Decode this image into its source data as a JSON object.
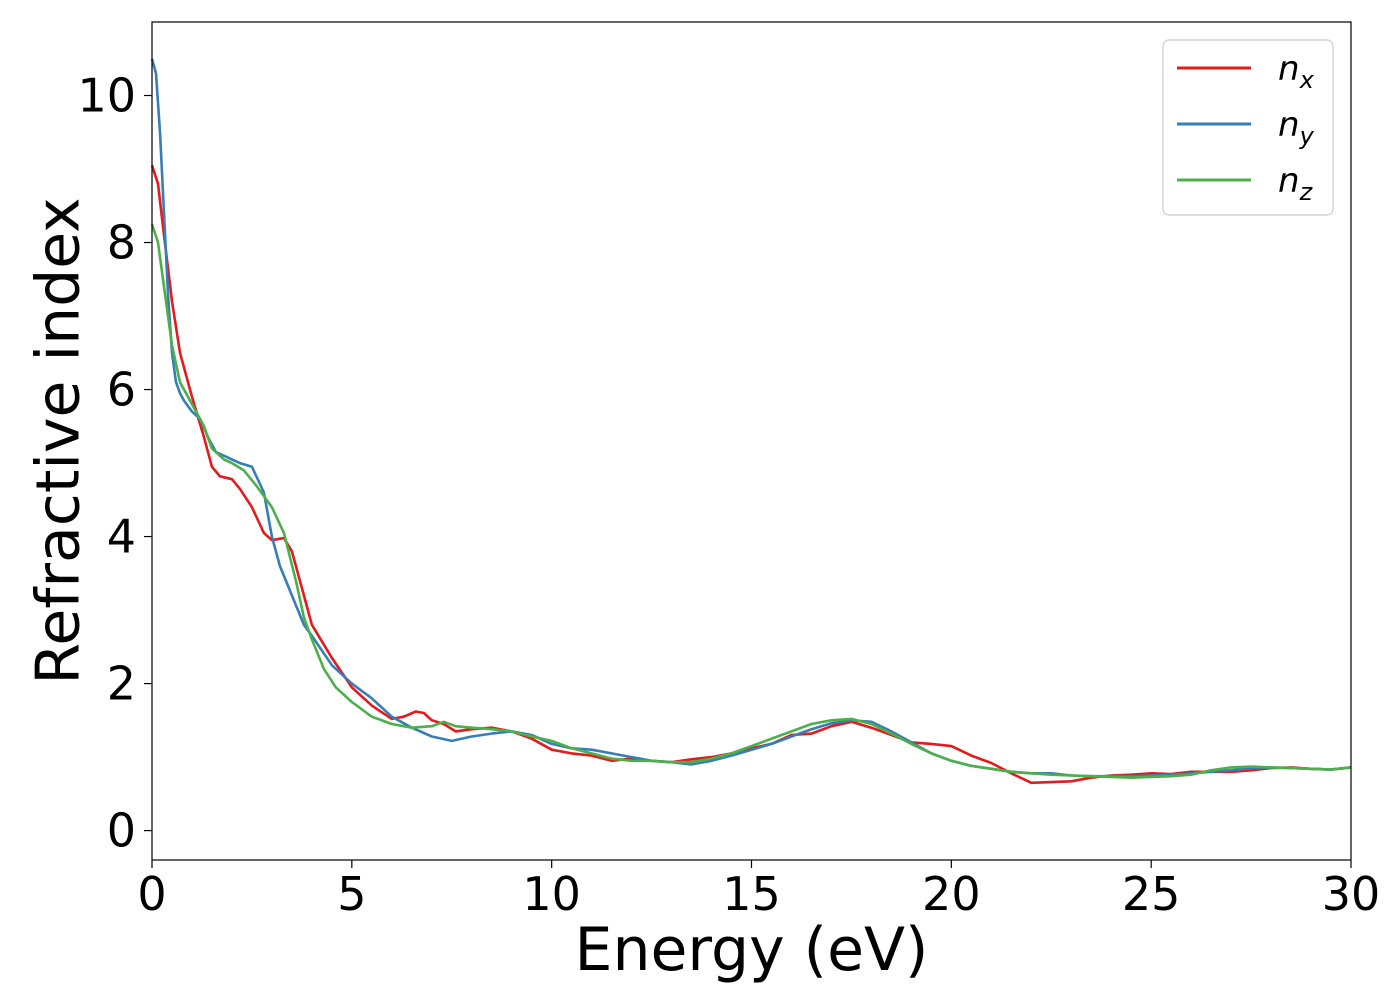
{
  "chart_data": {
    "type": "line",
    "xlabel": "Energy (eV)",
    "ylabel": "Refractive index",
    "xlim": [
      0,
      30
    ],
    "ylim": [
      -0.4,
      11
    ],
    "xticks": [
      0,
      5,
      10,
      15,
      20,
      25,
      30
    ],
    "yticks": [
      0,
      2,
      4,
      6,
      8,
      10
    ],
    "xtick_labels": [
      "0",
      "5",
      "10",
      "15",
      "20",
      "25",
      "30"
    ],
    "ytick_labels": [
      "0",
      "2",
      "4",
      "6",
      "8",
      "10"
    ],
    "grid": false,
    "legend_position": "top-right",
    "series": [
      {
        "name": "n_x",
        "legend_base": "n",
        "legend_sub": "x",
        "color": "#e41a1c",
        "x": [
          0,
          0.15,
          0.3,
          0.5,
          0.7,
          1.0,
          1.3,
          1.5,
          1.7,
          2.0,
          2.2,
          2.5,
          2.8,
          3.0,
          3.3,
          3.5,
          3.8,
          4.0,
          4.5,
          5.0,
          5.5,
          6.0,
          6.3,
          6.6,
          6.8,
          7.0,
          7.3,
          7.6,
          8.0,
          8.5,
          9.0,
          9.5,
          10.0,
          10.5,
          11.0,
          11.5,
          12.0,
          12.5,
          13.0,
          13.5,
          14.0,
          14.5,
          15.0,
          15.5,
          16.0,
          16.5,
          17.0,
          17.5,
          18.0,
          18.5,
          19.0,
          19.5,
          20.0,
          20.5,
          21.0,
          21.5,
          22.0,
          22.5,
          23.0,
          23.5,
          24.0,
          24.5,
          25.0,
          25.5,
          26.0,
          26.5,
          27.0,
          27.5,
          28.0,
          28.5,
          29.0,
          29.5,
          30.0
        ],
        "y": [
          9.05,
          8.8,
          8.1,
          7.2,
          6.5,
          5.9,
          5.35,
          4.95,
          4.82,
          4.78,
          4.65,
          4.4,
          4.05,
          3.95,
          3.98,
          3.8,
          3.2,
          2.8,
          2.35,
          1.95,
          1.7,
          1.52,
          1.55,
          1.62,
          1.6,
          1.5,
          1.45,
          1.35,
          1.38,
          1.4,
          1.35,
          1.25,
          1.1,
          1.05,
          1.02,
          0.95,
          0.98,
          0.95,
          0.93,
          0.97,
          1.0,
          1.05,
          1.12,
          1.18,
          1.3,
          1.32,
          1.42,
          1.48,
          1.4,
          1.3,
          1.2,
          1.18,
          1.15,
          1.02,
          0.92,
          0.78,
          0.65,
          0.66,
          0.67,
          0.72,
          0.75,
          0.76,
          0.78,
          0.77,
          0.8,
          0.8,
          0.8,
          0.82,
          0.85,
          0.86,
          0.84,
          0.83,
          0.86
        ]
      },
      {
        "name": "n_y",
        "legend_base": "n",
        "legend_sub": "y",
        "color": "#377eb8",
        "x": [
          0,
          0.1,
          0.2,
          0.3,
          0.4,
          0.5,
          0.6,
          0.7,
          0.8,
          1.0,
          1.2,
          1.4,
          1.6,
          1.8,
          2.0,
          2.2,
          2.5,
          2.8,
          3.0,
          3.2,
          3.5,
          3.8,
          4.0,
          4.5,
          5.0,
          5.5,
          6.0,
          6.5,
          7.0,
          7.5,
          8.0,
          8.5,
          9.0,
          9.5,
          10.0,
          10.5,
          11.0,
          11.5,
          12.0,
          12.5,
          13.0,
          13.5,
          14.0,
          14.5,
          15.0,
          15.5,
          16.0,
          16.5,
          17.0,
          17.5,
          18.0,
          18.5,
          19.0,
          19.5,
          20.0,
          20.5,
          21.0,
          21.5,
          22.0,
          22.5,
          23.0,
          23.5,
          24.0,
          24.5,
          25.0,
          25.5,
          26.0,
          26.5,
          27.0,
          27.5,
          28.0,
          28.5,
          29.0,
          29.5,
          30.0
        ],
        "y": [
          10.5,
          10.3,
          9.5,
          8.4,
          7.3,
          6.5,
          6.1,
          5.95,
          5.85,
          5.7,
          5.6,
          5.35,
          5.15,
          5.1,
          5.05,
          5.0,
          4.95,
          4.6,
          4.0,
          3.6,
          3.2,
          2.8,
          2.65,
          2.25,
          2.0,
          1.8,
          1.55,
          1.4,
          1.28,
          1.22,
          1.28,
          1.32,
          1.35,
          1.3,
          1.18,
          1.12,
          1.1,
          1.05,
          1.0,
          0.95,
          0.93,
          0.9,
          0.95,
          1.02,
          1.1,
          1.18,
          1.28,
          1.38,
          1.46,
          1.5,
          1.48,
          1.35,
          1.2,
          1.05,
          0.95,
          0.88,
          0.84,
          0.8,
          0.78,
          0.78,
          0.75,
          0.74,
          0.74,
          0.74,
          0.75,
          0.76,
          0.78,
          0.8,
          0.82,
          0.85,
          0.86,
          0.85,
          0.84,
          0.83,
          0.86
        ]
      },
      {
        "name": "n_z",
        "legend_base": "n",
        "legend_sub": "z",
        "color": "#4daf4a",
        "x": [
          0,
          0.15,
          0.3,
          0.5,
          0.7,
          1.0,
          1.3,
          1.5,
          1.8,
          2.0,
          2.3,
          2.6,
          3.0,
          3.3,
          3.6,
          3.8,
          4.0,
          4.3,
          4.6,
          5.0,
          5.5,
          6.0,
          6.5,
          7.0,
          7.3,
          7.6,
          8.0,
          8.5,
          9.0,
          9.5,
          10.0,
          10.5,
          11.0,
          11.5,
          12.0,
          12.5,
          13.0,
          13.5,
          14.0,
          14.5,
          15.0,
          15.5,
          16.0,
          16.5,
          17.0,
          17.5,
          18.0,
          18.5,
          19.0,
          19.5,
          20.0,
          20.5,
          21.0,
          21.5,
          22.0,
          22.5,
          23.0,
          23.5,
          24.0,
          24.5,
          25.0,
          25.5,
          26.0,
          26.5,
          27.0,
          27.5,
          28.0,
          28.5,
          29.0,
          29.5,
          30.0
        ],
        "y": [
          8.25,
          8.0,
          7.4,
          6.6,
          6.1,
          5.8,
          5.5,
          5.2,
          5.05,
          5.0,
          4.9,
          4.7,
          4.4,
          4.05,
          3.4,
          2.9,
          2.6,
          2.2,
          1.95,
          1.75,
          1.55,
          1.45,
          1.4,
          1.42,
          1.48,
          1.42,
          1.4,
          1.38,
          1.35,
          1.28,
          1.22,
          1.12,
          1.05,
          0.98,
          0.95,
          0.95,
          0.93,
          0.93,
          0.98,
          1.05,
          1.15,
          1.25,
          1.35,
          1.45,
          1.5,
          1.52,
          1.45,
          1.32,
          1.18,
          1.05,
          0.95,
          0.88,
          0.84,
          0.8,
          0.78,
          0.76,
          0.75,
          0.74,
          0.73,
          0.72,
          0.73,
          0.74,
          0.76,
          0.82,
          0.86,
          0.87,
          0.86,
          0.85,
          0.84,
          0.83,
          0.86
        ]
      }
    ]
  }
}
